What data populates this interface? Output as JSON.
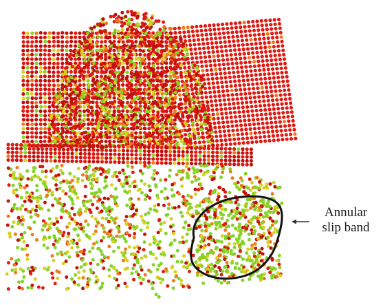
{
  "annotation": {
    "line1": "Annular",
    "line2": "slip band"
  },
  "colors": {
    "background": "#ffffff",
    "atom_red": "#e01a12",
    "atom_dark_red": "#c0100c",
    "atom_orange": "#ee7a18",
    "atom_yellow": "#d8d020",
    "atom_green": "#86d228",
    "outline": "#111111",
    "arrow": "#333333"
  }
}
